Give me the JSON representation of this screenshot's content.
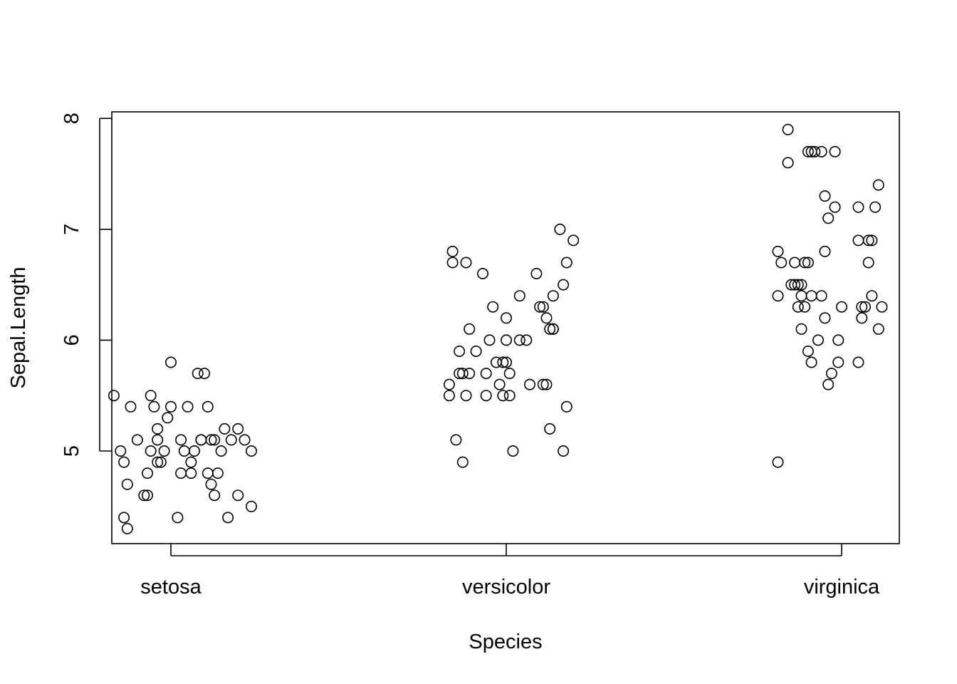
{
  "chart_data": {
    "type": "scatter",
    "title": "",
    "xlabel": "Species",
    "ylabel": "Sepal.Length",
    "categories": [
      "setosa",
      "versicolor",
      "virginica"
    ],
    "yticks": [
      5,
      6,
      7,
      8
    ],
    "ylim": [
      4.2,
      8.1
    ],
    "grid": false,
    "legend": "none",
    "jitter": "horizontal",
    "series": [
      {
        "category": "setosa",
        "points": [
          [
            0.83,
            5.5
          ],
          [
            0.85,
            5.0
          ],
          [
            0.86,
            4.9
          ],
          [
            0.87,
            4.7
          ],
          [
            0.86,
            4.4
          ],
          [
            0.87,
            4.3
          ],
          [
            0.88,
            5.4
          ],
          [
            0.9,
            5.1
          ],
          [
            0.92,
            4.6
          ],
          [
            0.93,
            4.6
          ],
          [
            0.93,
            4.8
          ],
          [
            0.94,
            5.0
          ],
          [
            0.94,
            5.5
          ],
          [
            0.95,
            5.4
          ],
          [
            0.96,
            5.2
          ],
          [
            0.96,
            5.1
          ],
          [
            0.96,
            4.9
          ],
          [
            0.97,
            4.9
          ],
          [
            0.98,
            5.0
          ],
          [
            0.99,
            5.3
          ],
          [
            1.0,
            5.4
          ],
          [
            1.0,
            5.8
          ],
          [
            1.02,
            4.4
          ],
          [
            1.03,
            4.8
          ],
          [
            1.03,
            5.1
          ],
          [
            1.04,
            5.0
          ],
          [
            1.05,
            5.4
          ],
          [
            1.06,
            4.8
          ],
          [
            1.06,
            4.9
          ],
          [
            1.07,
            5.0
          ],
          [
            1.08,
            5.7
          ],
          [
            1.09,
            5.1
          ],
          [
            1.09,
            5.1
          ],
          [
            1.1,
            5.7
          ],
          [
            1.11,
            4.8
          ],
          [
            1.11,
            5.4
          ],
          [
            1.12,
            4.7
          ],
          [
            1.12,
            5.1
          ],
          [
            1.13,
            4.6
          ],
          [
            1.13,
            5.1
          ],
          [
            1.14,
            4.8
          ],
          [
            1.15,
            5.0
          ],
          [
            1.16,
            5.2
          ],
          [
            1.17,
            4.4
          ],
          [
            1.18,
            5.1
          ],
          [
            1.2,
            5.2
          ],
          [
            1.2,
            4.6
          ],
          [
            1.22,
            5.1
          ],
          [
            1.24,
            4.5
          ],
          [
            1.24,
            5.0
          ]
        ]
      },
      {
        "category": "versicolor",
        "points": [
          [
            1.83,
            5.6
          ],
          [
            1.83,
            5.5
          ],
          [
            1.84,
            6.8
          ],
          [
            1.84,
            6.7
          ],
          [
            1.85,
            5.1
          ],
          [
            1.86,
            5.9
          ],
          [
            1.86,
            5.7
          ],
          [
            1.87,
            4.9
          ],
          [
            1.87,
            5.7
          ],
          [
            1.88,
            6.7
          ],
          [
            1.88,
            5.5
          ],
          [
            1.89,
            6.1
          ],
          [
            1.89,
            5.7
          ],
          [
            1.91,
            5.9
          ],
          [
            1.93,
            6.6
          ],
          [
            1.94,
            5.5
          ],
          [
            1.94,
            5.7
          ],
          [
            1.95,
            6.0
          ],
          [
            1.96,
            6.3
          ],
          [
            1.97,
            5.8
          ],
          [
            1.98,
            5.6
          ],
          [
            1.99,
            5.8
          ],
          [
            1.99,
            5.5
          ],
          [
            2.0,
            6.2
          ],
          [
            2.0,
            5.8
          ],
          [
            2.0,
            6.0
          ],
          [
            2.01,
            5.7
          ],
          [
            2.01,
            5.5
          ],
          [
            2.02,
            5.0
          ],
          [
            2.04,
            6.4
          ],
          [
            2.04,
            6.0
          ],
          [
            2.06,
            6.0
          ],
          [
            2.07,
            5.6
          ],
          [
            2.09,
            6.6
          ],
          [
            2.1,
            6.3
          ],
          [
            2.11,
            6.3
          ],
          [
            2.11,
            5.6
          ],
          [
            2.12,
            5.6
          ],
          [
            2.12,
            6.2
          ],
          [
            2.13,
            6.1
          ],
          [
            2.13,
            5.2
          ],
          [
            2.14,
            6.1
          ],
          [
            2.14,
            6.1
          ],
          [
            2.14,
            6.4
          ],
          [
            2.16,
            7.0
          ],
          [
            2.17,
            6.5
          ],
          [
            2.17,
            5.0
          ],
          [
            2.18,
            6.7
          ],
          [
            2.18,
            5.4
          ],
          [
            2.2,
            6.9
          ]
        ]
      },
      {
        "category": "virginica",
        "points": [
          [
            2.81,
            6.8
          ],
          [
            2.81,
            6.4
          ],
          [
            2.81,
            4.9
          ],
          [
            2.82,
            6.7
          ],
          [
            2.84,
            7.9
          ],
          [
            2.84,
            7.6
          ],
          [
            2.85,
            6.5
          ],
          [
            2.86,
            6.5
          ],
          [
            2.86,
            6.7
          ],
          [
            2.87,
            6.5
          ],
          [
            2.87,
            6.3
          ],
          [
            2.88,
            6.1
          ],
          [
            2.88,
            6.4
          ],
          [
            2.88,
            6.5
          ],
          [
            2.89,
            6.7
          ],
          [
            2.89,
            6.3
          ],
          [
            2.9,
            6.7
          ],
          [
            2.9,
            5.9
          ],
          [
            2.9,
            7.7
          ],
          [
            2.91,
            5.8
          ],
          [
            2.91,
            6.4
          ],
          [
            2.91,
            7.7
          ],
          [
            2.92,
            7.7
          ],
          [
            2.93,
            6.0
          ],
          [
            2.94,
            7.7
          ],
          [
            2.94,
            6.4
          ],
          [
            2.95,
            7.3
          ],
          [
            2.95,
            6.8
          ],
          [
            2.95,
            6.2
          ],
          [
            2.96,
            7.1
          ],
          [
            2.96,
            5.6
          ],
          [
            2.97,
            5.7
          ],
          [
            2.98,
            7.7
          ],
          [
            2.98,
            7.2
          ],
          [
            2.99,
            5.8
          ],
          [
            2.99,
            6.0
          ],
          [
            3.0,
            6.3
          ],
          [
            3.05,
            7.2
          ],
          [
            3.05,
            6.9
          ],
          [
            3.05,
            5.8
          ],
          [
            3.06,
            6.2
          ],
          [
            3.06,
            6.3
          ],
          [
            3.07,
            6.3
          ],
          [
            3.08,
            6.9
          ],
          [
            3.08,
            6.7
          ],
          [
            3.09,
            6.4
          ],
          [
            3.09,
            6.9
          ],
          [
            3.1,
            7.2
          ],
          [
            3.11,
            7.4
          ],
          [
            3.11,
            6.1
          ],
          [
            3.12,
            6.3
          ]
        ]
      }
    ]
  }
}
